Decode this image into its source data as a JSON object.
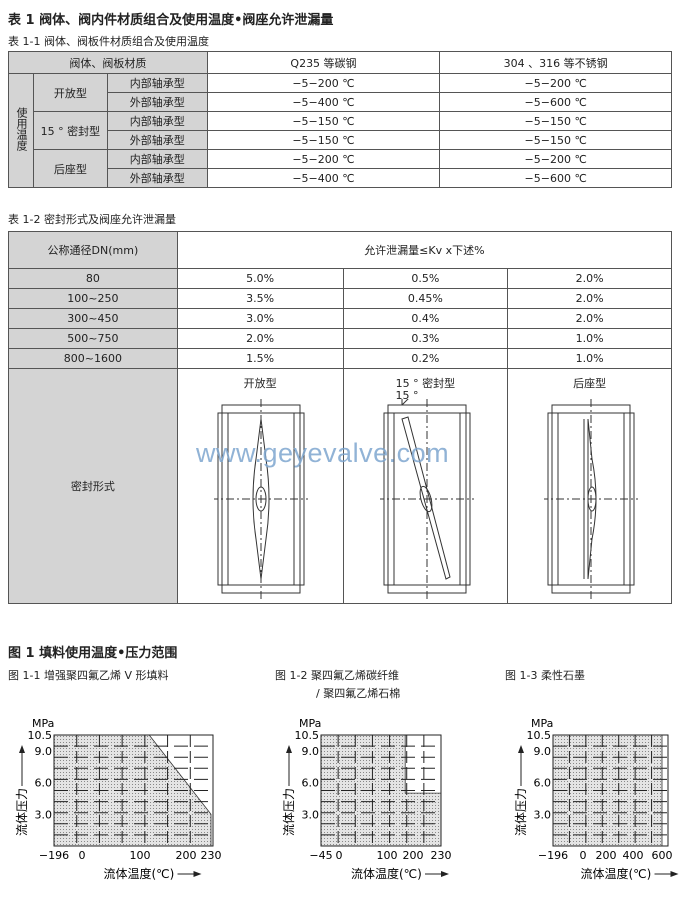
{
  "title": "表 1 阀体、阀内件材质组合及使用温度•阀座允许泄漏量",
  "table1": {
    "caption": "表 1-1 阀体、阀板件材质组合及使用温度",
    "header": [
      "阀体、阀板材质",
      "Q235 等碳钢",
      "304 、316 等不锈钢"
    ],
    "side_label": "使用温度",
    "groups": [
      {
        "type": "开放型",
        "rows": [
          [
            "内部轴承型",
            "−5−200 ℃",
            "−5−200 ℃"
          ],
          [
            "外部轴承型",
            "−5−400 ℃",
            "−5−600 ℃"
          ]
        ]
      },
      {
        "type": "15 ° 密封型",
        "rows": [
          [
            "内部轴承型",
            "−5−150 ℃",
            "−5−150 ℃"
          ],
          [
            "外部轴承型",
            "−5−150 ℃",
            "−5−150 ℃"
          ]
        ]
      },
      {
        "type": "后座型",
        "rows": [
          [
            "内部轴承型",
            "−5−200 ℃",
            "−5−200 ℃"
          ],
          [
            "外部轴承型",
            "−5−400 ℃",
            "−5−600 ℃"
          ]
        ]
      }
    ]
  },
  "table2": {
    "caption": "表 1-2 密封形式及阀座允许泄漏量",
    "header": [
      "公称通径DN(mm)",
      "允许泄漏量≤Kv x下述%"
    ],
    "rows": [
      [
        "80",
        "5.0%",
        "0.5%",
        "2.0%"
      ],
      [
        "100~250",
        "3.5%",
        "0.45%",
        "2.0%"
      ],
      [
        "300~450",
        "3.0%",
        "0.4%",
        "2.0%"
      ],
      [
        "500~750",
        "2.0%",
        "0.3%",
        "1.0%"
      ],
      [
        "800~1600",
        "1.5%",
        "0.2%",
        "1.0%"
      ]
    ],
    "seal_label": "密封形式",
    "seal_types": [
      "开放型",
      "15 °  密封型",
      "后座型"
    ],
    "angle_label": "15 °"
  },
  "watermark": "www.geyevalve.com",
  "figure": {
    "title": "图 1 填料使用温度•压力范围",
    "colors": {
      "shade": "#d0d0d0",
      "grid": "#222222"
    }
  },
  "chart_data": [
    {
      "type": "area",
      "title": "图 1-1 增强聚四氟乙烯 V 形填料",
      "ylabel": "流体压力",
      "yunit": "MPa",
      "xlabel": "流体温度(℃)",
      "xticks": [
        -196,
        0,
        100,
        200,
        230
      ],
      "yticks": [
        10.5,
        9.0,
        6.0,
        3.0
      ],
      "ylim": [
        0,
        10.5
      ],
      "xlim": [
        -196,
        230
      ],
      "region": [
        [
          -196,
          0
        ],
        [
          -196,
          10.5
        ],
        [
          120,
          10.5
        ],
        [
          230,
          3.0
        ],
        [
          230,
          0
        ]
      ]
    },
    {
      "type": "area",
      "title": "图 1-2 聚四氟乙烯碳纤维",
      "title2": "/ 聚四氟乙烯石棉",
      "ylabel": "流体压力",
      "yunit": "MPa",
      "xlabel": "流体温度(℃)",
      "xticks": [
        -45,
        0,
        100,
        200,
        230
      ],
      "yticks": [
        10.5,
        9.0,
        6.0,
        3.0
      ],
      "ylim": [
        0,
        10.5
      ],
      "xlim": [
        -45,
        230
      ],
      "region": [
        [
          -45,
          0
        ],
        [
          -45,
          10.5
        ],
        [
          170,
          10.5
        ],
        [
          170,
          5.0
        ],
        [
          230,
          5.0
        ],
        [
          230,
          0
        ]
      ]
    },
    {
      "type": "area",
      "title": "图 1-3 柔性石墨",
      "ylabel": "流体压力",
      "yunit": "MPa",
      "xlabel": "流体温度(℃)",
      "xticks": [
        -196,
        0,
        200,
        400,
        600
      ],
      "yticks": [
        10.5,
        9.0,
        6.0,
        3.0
      ],
      "ylim": [
        0,
        10.5
      ],
      "xlim": [
        -196,
        600
      ],
      "region": [
        [
          -196,
          0
        ],
        [
          -196,
          10.5
        ],
        [
          600,
          10.5
        ],
        [
          600,
          0
        ]
      ]
    }
  ]
}
